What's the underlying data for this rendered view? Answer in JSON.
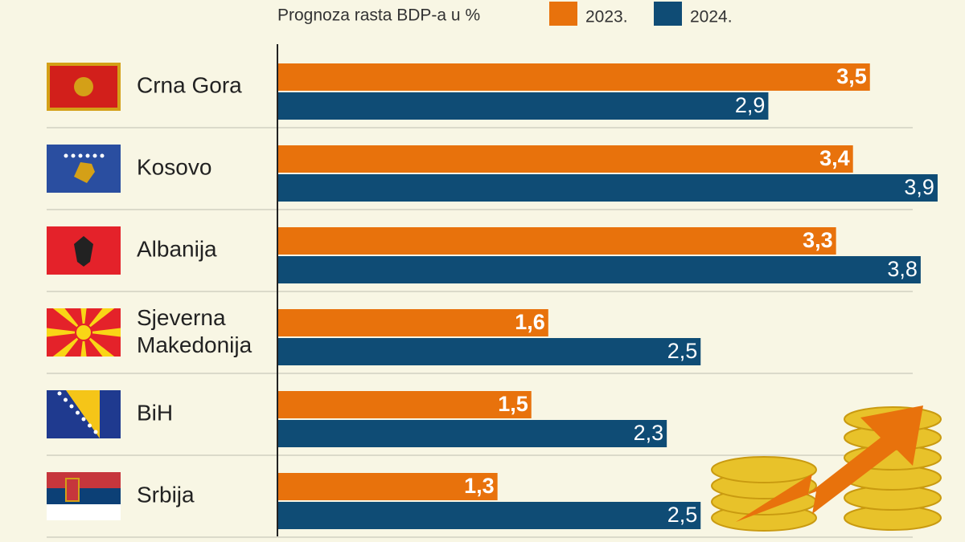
{
  "chart_data": {
    "type": "bar",
    "orientation": "horizontal",
    "legend_title": "Prognoza rasta BDP-a u %",
    "categories": [
      "Crna Gora",
      "Kosovo",
      "Albanija",
      "Sjeverna Makedonija",
      "BiH",
      "Srbija"
    ],
    "series": [
      {
        "name": "2023.",
        "color": "#e8720c",
        "values": [
          3.5,
          3.4,
          3.3,
          1.6,
          1.5,
          1.3
        ],
        "value_labels": [
          "3,5",
          "3,4",
          "3,3",
          "1,6",
          "1,5",
          "1,3"
        ]
      },
      {
        "name": "2024.",
        "color": "#0f4c75",
        "values": [
          2.9,
          3.9,
          3.8,
          2.5,
          2.3,
          2.5
        ],
        "value_labels": [
          "2,9",
          "3,9",
          "3,8",
          "2,5",
          "2,3",
          "2,5"
        ]
      }
    ],
    "xlim": [
      0,
      4
    ]
  }
}
